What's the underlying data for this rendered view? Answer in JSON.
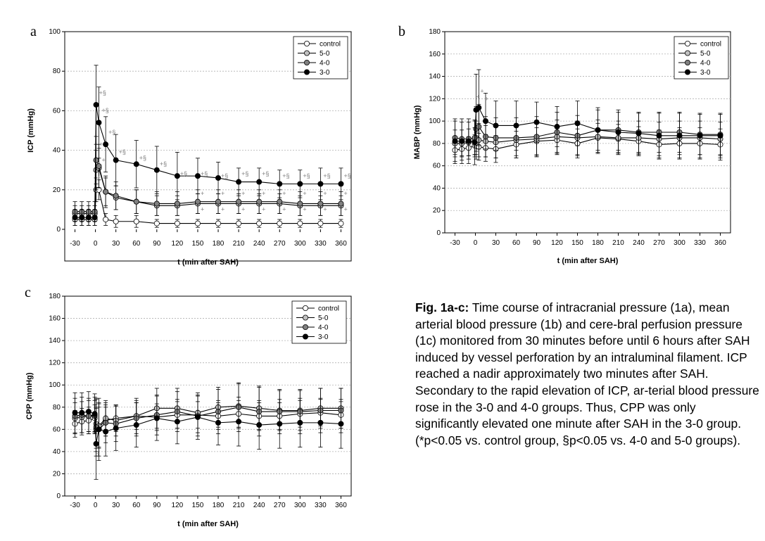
{
  "figure": {
    "panel_labels": [
      "a",
      "b",
      "c"
    ],
    "caption_title": "Fig. 1a-c:",
    "caption_body": " Time course of intracranial pressure (1a), mean arterial blood pressure (1b) and cere-bral perfusion pressure (1c) monitored from 30 minutes before until 6 hours after SAH induced by vessel perforation by an intraluminal filament. ICP reached a nadir approximately two minutes after SAH. Secondary to the rapid elevation of ICP, ar-terial blood pressure rose in the 3-0 and 4-0 groups. Thus, CPP was only significantly elevated one minute after SAH in the 3-0 group. (*p<0.05 vs. control group, §p<0.05 vs. 4-0 and 5-0 groups)."
  },
  "colors": {
    "control": "#ffffff",
    "5-0": "#c0c0c0",
    "4-0": "#808080",
    "3-0": "#000000",
    "grid": "#b0b0b0",
    "annotation": "#808080"
  },
  "chart_data": [
    {
      "type": "line",
      "panel": "a",
      "title": "",
      "xlabel": "t (min after SAH)",
      "ylabel": "ICP (mmHg)",
      "ylim": [
        0,
        100
      ],
      "yticks": [
        0,
        20,
        40,
        60,
        80,
        100
      ],
      "xticks": [
        -30,
        0,
        30,
        60,
        90,
        120,
        150,
        180,
        210,
        240,
        270,
        300,
        330,
        360
      ],
      "grid": true,
      "legend": "top-right",
      "x": [
        -30,
        -20,
        -10,
        -1,
        1,
        5,
        15,
        30,
        60,
        90,
        120,
        150,
        180,
        210,
        240,
        270,
        300,
        330,
        360
      ],
      "series": [
        {
          "name": "control",
          "values": [
            5,
            5,
            5,
            5,
            20,
            20,
            5,
            4,
            4,
            3,
            3,
            3,
            3,
            3,
            3,
            3,
            3,
            3,
            3
          ],
          "err": [
            3,
            3,
            3,
            3,
            6,
            5,
            3,
            3,
            3,
            2,
            2,
            2,
            2,
            2,
            2,
            2,
            2,
            2,
            2
          ]
        },
        {
          "name": "5-0",
          "values": [
            8,
            8,
            8,
            8,
            30,
            31,
            19,
            16,
            14,
            12,
            12,
            13,
            13,
            13,
            13,
            13,
            12,
            12,
            12
          ],
          "err": [
            4,
            4,
            4,
            4,
            10,
            10,
            7,
            6,
            6,
            5,
            5,
            5,
            5,
            5,
            5,
            5,
            5,
            5,
            5
          ]
        },
        {
          "name": "4-0",
          "values": [
            9,
            9,
            9,
            9,
            35,
            32,
            19,
            17,
            14,
            13,
            13,
            14,
            14,
            14,
            14,
            14,
            13,
            13,
            13
          ],
          "err": [
            5,
            5,
            5,
            5,
            12,
            11,
            8,
            7,
            6,
            6,
            6,
            6,
            6,
            6,
            6,
            6,
            6,
            6,
            6
          ]
        },
        {
          "name": "3-0",
          "values": [
            6,
            6,
            6,
            6,
            63,
            54,
            43,
            35,
            33,
            30,
            27,
            27,
            26,
            24,
            24,
            23,
            23,
            23,
            23
          ],
          "err": [
            4,
            4,
            4,
            4,
            20,
            18,
            14,
            13,
            12,
            12,
            12,
            9,
            8,
            7,
            7,
            7,
            7,
            8,
            8
          ]
        }
      ],
      "annotations": [
        {
          "text": "+§",
          "x": 1,
          "y": 68
        },
        {
          "text": "+§",
          "x": 5,
          "y": 59
        },
        {
          "text": "+§",
          "x": 15,
          "y": 48
        },
        {
          "text": "+",
          "x": 1,
          "y": 42
        },
        {
          "text": "+",
          "x": 5,
          "y": 34
        },
        {
          "text": "+",
          "x": -2,
          "y": 25
        },
        {
          "text": "+§",
          "x": 30,
          "y": 38
        },
        {
          "text": "+§",
          "x": 60,
          "y": 35
        },
        {
          "text": "+§",
          "x": 90,
          "y": 32
        },
        {
          "text": "+§",
          "x": 120,
          "y": 27
        },
        {
          "text": "+§",
          "x": 150,
          "y": 27
        },
        {
          "text": "+§",
          "x": 180,
          "y": 26
        },
        {
          "text": "+§",
          "x": 210,
          "y": 27
        },
        {
          "text": "+§",
          "x": 240,
          "y": 27
        },
        {
          "text": "+§",
          "x": 270,
          "y": 26
        },
        {
          "text": "+§",
          "x": 300,
          "y": 26
        },
        {
          "text": "+§",
          "x": 330,
          "y": 26
        },
        {
          "text": "+§",
          "x": 360,
          "y": 26
        },
        {
          "text": "+",
          "x": 150,
          "y": 17
        },
        {
          "text": "+",
          "x": 180,
          "y": 17
        },
        {
          "text": "+",
          "x": 210,
          "y": 17
        },
        {
          "text": "+",
          "x": 240,
          "y": 17
        },
        {
          "text": "+",
          "x": 270,
          "y": 17
        },
        {
          "text": "+",
          "x": 300,
          "y": 17
        },
        {
          "text": "+",
          "x": 330,
          "y": 17
        },
        {
          "text": "+",
          "x": 360,
          "y": 17
        },
        {
          "text": "+",
          "x": 150,
          "y": 9
        },
        {
          "text": "+",
          "x": 180,
          "y": 9
        },
        {
          "text": "+",
          "x": 210,
          "y": 9
        },
        {
          "text": "+",
          "x": 240,
          "y": 9
        },
        {
          "text": "+",
          "x": 270,
          "y": 9
        },
        {
          "text": "+",
          "x": 300,
          "y": 9
        },
        {
          "text": "+",
          "x": 330,
          "y": 9
        },
        {
          "text": "+",
          "x": 360,
          "y": 9
        }
      ]
    },
    {
      "type": "line",
      "panel": "b",
      "title": "",
      "xlabel": "t (min after SAH)",
      "ylabel": "MABP (mmHg)",
      "ylim": [
        0,
        180
      ],
      "yticks": [
        0,
        20,
        40,
        60,
        80,
        100,
        120,
        140,
        160,
        180
      ],
      "xticks": [
        -30,
        0,
        30,
        60,
        90,
        120,
        150,
        180,
        210,
        240,
        270,
        300,
        330,
        360
      ],
      "grid": true,
      "legend": "top-right",
      "x": [
        -30,
        -20,
        -10,
        -1,
        1,
        5,
        15,
        30,
        60,
        90,
        120,
        150,
        180,
        210,
        240,
        270,
        300,
        330,
        360
      ],
      "series": [
        {
          "name": "control",
          "values": [
            74,
            75,
            76,
            78,
            78,
            77,
            76,
            75,
            79,
            82,
            83,
            80,
            85,
            84,
            82,
            79,
            80,
            80,
            79
          ],
          "err": [
            10,
            10,
            10,
            10,
            12,
            12,
            12,
            12,
            12,
            12,
            13,
            13,
            13,
            13,
            13,
            13,
            14,
            14,
            14
          ]
        },
        {
          "name": "5-0",
          "values": [
            80,
            80,
            81,
            82,
            85,
            83,
            82,
            81,
            83,
            84,
            86,
            85,
            86,
            85,
            85,
            84,
            85,
            85,
            84
          ],
          "err": [
            12,
            12,
            12,
            12,
            15,
            15,
            14,
            14,
            14,
            15,
            15,
            15,
            15,
            15,
            15,
            15,
            15,
            15,
            15
          ]
        },
        {
          "name": "4-0",
          "values": [
            85,
            84,
            84,
            85,
            93,
            95,
            86,
            85,
            85,
            86,
            90,
            87,
            92,
            92,
            90,
            90,
            90,
            88,
            88
          ],
          "err": [
            15,
            15,
            15,
            15,
            20,
            20,
            18,
            18,
            18,
            18,
            18,
            18,
            18,
            18,
            18,
            18,
            18,
            18,
            18
          ]
        },
        {
          "name": "3-0",
          "values": [
            82,
            82,
            82,
            81,
            110,
            112,
            100,
            96,
            96,
            99,
            95,
            98,
            92,
            90,
            89,
            87,
            87,
            87,
            87
          ],
          "err": [
            20,
            20,
            20,
            20,
            32,
            34,
            25,
            22,
            22,
            18,
            18,
            20,
            20,
            18,
            18,
            20,
            20,
            20,
            20
          ]
        }
      ],
      "annotations": [
        {
          "text": "+",
          "x": -3,
          "y": 120
        },
        {
          "text": "+",
          "x": 3,
          "y": 125
        },
        {
          "text": "+",
          "x": 10,
          "y": 118
        }
      ]
    },
    {
      "type": "line",
      "panel": "c",
      "title": "",
      "xlabel": "t (min after SAH)",
      "ylabel": "CPP (mmHg)",
      "ylim": [
        0,
        180
      ],
      "yticks": [
        0,
        20,
        40,
        60,
        80,
        100,
        120,
        140,
        160,
        180
      ],
      "xticks": [
        -30,
        0,
        30,
        60,
        90,
        120,
        150,
        180,
        210,
        240,
        270,
        300,
        330,
        360
      ],
      "grid": true,
      "legend": "top-right",
      "x": [
        -30,
        -20,
        -10,
        -1,
        1,
        5,
        15,
        30,
        60,
        90,
        120,
        150,
        180,
        210,
        240,
        270,
        300,
        330,
        360
      ],
      "series": [
        {
          "name": "control",
          "values": [
            65,
            67,
            68,
            70,
            60,
            62,
            68,
            70,
            72,
            71,
            73,
            73,
            72,
            74,
            72,
            72,
            74,
            75,
            73
          ],
          "err": [
            12,
            12,
            12,
            12,
            20,
            18,
            14,
            12,
            12,
            12,
            12,
            12,
            12,
            12,
            12,
            12,
            12,
            12,
            12
          ]
        },
        {
          "name": "5-0",
          "values": [
            70,
            71,
            72,
            72,
            65,
            63,
            70,
            68,
            72,
            79,
            79,
            75,
            80,
            81,
            79,
            77,
            77,
            79,
            79
          ],
          "err": [
            14,
            14,
            14,
            14,
            22,
            20,
            16,
            14,
            16,
            18,
            18,
            18,
            18,
            20,
            20,
            18,
            18,
            18,
            18
          ]
        },
        {
          "name": "4-0",
          "values": [
            72,
            73,
            72,
            73,
            62,
            60,
            66,
            65,
            70,
            73,
            76,
            72,
            76,
            80,
            76,
            76,
            76,
            77,
            77
          ],
          "err": [
            16,
            16,
            16,
            16,
            26,
            24,
            18,
            16,
            16,
            18,
            18,
            18,
            20,
            22,
            22,
            20,
            20,
            20,
            20
          ]
        },
        {
          "name": "3-0",
          "values": [
            75,
            75,
            76,
            74,
            47,
            60,
            58,
            61,
            64,
            70,
            67,
            71,
            66,
            67,
            64,
            65,
            66,
            66,
            65
          ],
          "err": [
            18,
            18,
            18,
            18,
            32,
            28,
            22,
            20,
            20,
            20,
            20,
            20,
            20,
            22,
            22,
            22,
            22,
            22,
            22
          ]
        }
      ],
      "annotations": [
        {
          "text": "+",
          "x": -3,
          "y": 36
        }
      ]
    }
  ]
}
